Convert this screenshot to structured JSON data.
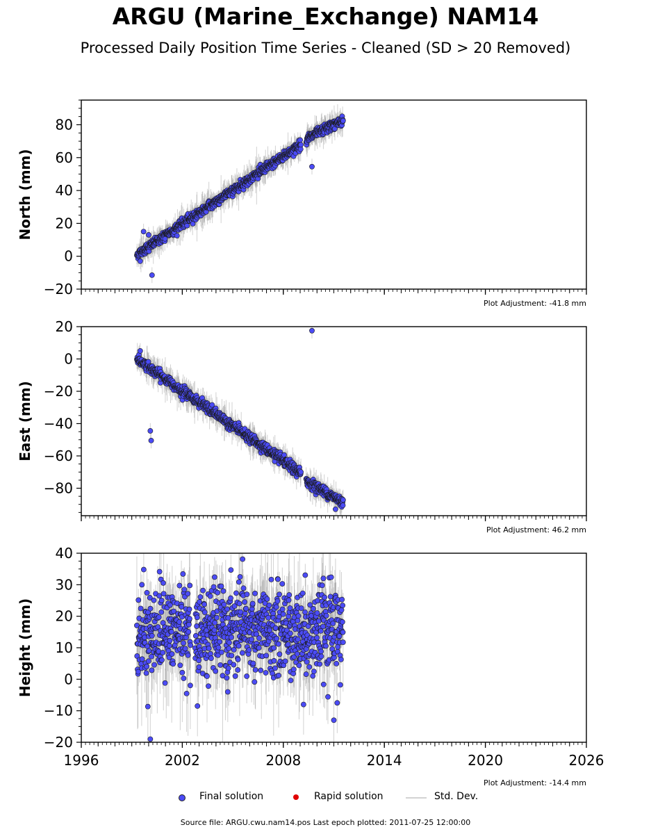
{
  "title": "ARGU (Marine_Exchange) NAM14",
  "subtitle": "Processed Daily Position Time Series - Cleaned (SD > 20 Removed)",
  "legend": {
    "final": "Final solution",
    "rapid": "Rapid solution",
    "std": "Std. Dev."
  },
  "source_note": "Source file: ARGU.cwu.nam14.pos  Last epoch plotted: 2011-07-25 12:00:00",
  "colors": {
    "final_fill": "#4b4bf5",
    "marker_edge": "#1a1a1a",
    "rapid_fill": "#e00000",
    "std_dev": "#9a9a9a"
  },
  "chart_data": [
    {
      "type": "scatter",
      "ylabel": "North (mm)",
      "xlim": [
        1996,
        2026
      ],
      "ylim": [
        -20,
        95
      ],
      "yticks": [
        -20,
        0,
        20,
        40,
        60,
        80
      ],
      "xticks": [
        1996,
        2002,
        2008,
        2014,
        2020,
        2026
      ],
      "show_xtick_labels": false,
      "adjustment": "Plot Adjustment: -41.8 mm",
      "trend": [
        [
          1999.3,
          1
        ],
        [
          2009.2,
          69
        ],
        [
          2009.3,
          71
        ],
        [
          2011.55,
          83
        ]
      ],
      "noise": 1.4,
      "sigma": 4,
      "outliers": [
        [
          1999.5,
          -3
        ],
        [
          2000.2,
          -11.5
        ],
        [
          2009.7,
          54.5
        ],
        [
          1999.7,
          15
        ],
        [
          2000.0,
          13
        ]
      ],
      "gap": [
        2009.05,
        2009.35
      ]
    },
    {
      "type": "scatter",
      "ylabel": "East (mm)",
      "xlim": [
        1996,
        2026
      ],
      "ylim": [
        -97,
        20
      ],
      "yticks": [
        -80,
        -60,
        -40,
        -20,
        0,
        20
      ],
      "xticks": [
        1996,
        2002,
        2008,
        2014,
        2020,
        2026
      ],
      "show_xtick_labels": false,
      "adjustment": "Plot Adjustment: 46.2 mm",
      "trend": [
        [
          1999.3,
          0
        ],
        [
          2009.2,
          -72
        ],
        [
          2009.3,
          -75
        ],
        [
          2011.55,
          -89
        ]
      ],
      "noise": 1.5,
      "sigma": 4,
      "outliers": [
        [
          2000.1,
          -44.5
        ],
        [
          2000.15,
          -50.5
        ],
        [
          2009.7,
          17.5
        ],
        [
          1999.5,
          5
        ],
        [
          2011.1,
          -93
        ]
      ],
      "gap": [
        2009.05,
        2009.35
      ]
    },
    {
      "type": "scatter",
      "ylabel": "Height (mm)",
      "xlim": [
        1996,
        2026
      ],
      "ylim": [
        -20,
        40
      ],
      "yticks": [
        -20,
        -10,
        0,
        10,
        20,
        30,
        40
      ],
      "xticks": [
        1996,
        2002,
        2008,
        2014,
        2020,
        2026
      ],
      "show_xtick_labels": true,
      "adjustment": "Plot Adjustment: -14.4 mm",
      "trend": [
        [
          1999.3,
          15
        ],
        [
          2011.55,
          15
        ]
      ],
      "noise": 7,
      "sigma": 8,
      "outliers": [
        [
          2000.1,
          -19
        ],
        [
          2002.9,
          -8.5
        ],
        [
          2011.0,
          -13
        ],
        [
          2011.2,
          -7.5
        ],
        [
          2009.2,
          -8
        ],
        [
          2004.7,
          -4
        ]
      ],
      "gap": [
        2002.5,
        2002.75
      ]
    }
  ]
}
